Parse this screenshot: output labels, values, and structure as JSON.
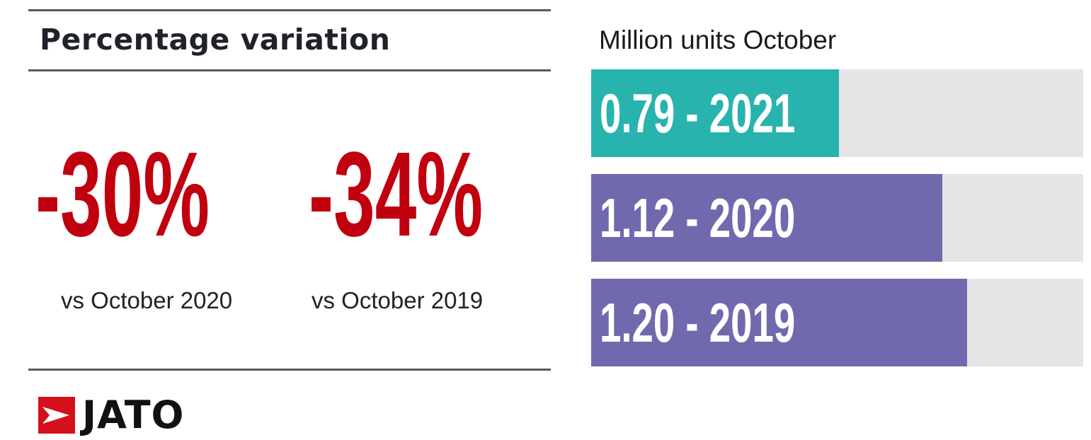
{
  "header": {
    "title": "Percentage variation"
  },
  "variations": [
    {
      "value": "-30%",
      "label": "vs October 2020"
    },
    {
      "value": "-34%",
      "label": "vs October 2019"
    }
  ],
  "logo": {
    "text": "JATO",
    "icon": "jato-arrow-logo-icon"
  },
  "chart_data": {
    "type": "bar",
    "orientation": "horizontal",
    "title": "Million units October",
    "categories": [
      "2021",
      "2020",
      "2019"
    ],
    "values": [
      0.79,
      1.12,
      1.2
    ],
    "labels": [
      "0.79 - 2021",
      "1.12 - 2020",
      "1.20 - 2019"
    ],
    "xlim": [
      0,
      1.57
    ],
    "grid": false,
    "colors": [
      "#28b3ae",
      "#7169ad",
      "#7169ad"
    ],
    "track_color": "#e6e5e6"
  },
  "colors": {
    "accent_red": "#c0000f",
    "rule": "#555a60"
  }
}
